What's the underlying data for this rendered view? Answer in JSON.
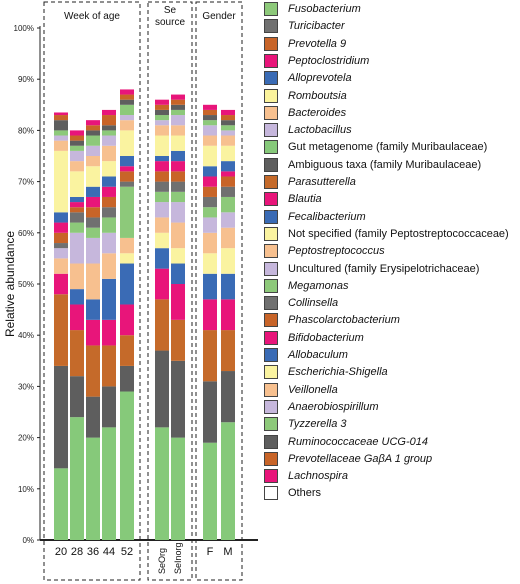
{
  "chart_data": {
    "type": "bar",
    "stacked": true,
    "ylabel": "Relative abundance",
    "ylim": [
      0,
      100
    ],
    "yticks": [
      "0%",
      "10%",
      "20%",
      "30%",
      "40%",
      "50%",
      "60%",
      "70%",
      "80%",
      "90%",
      "100%"
    ],
    "groups": [
      {
        "title": "Week of age",
        "categories": [
          "20",
          "28",
          "36",
          "44",
          "52"
        ]
      },
      {
        "title": "Se source",
        "categories": [
          "SeOrg",
          "SeInorg"
        ]
      },
      {
        "title": "Gender",
        "categories": [
          "F",
          "M"
        ]
      }
    ],
    "categories": [
      "20",
      "28",
      "36",
      "44",
      "52",
      "SeOrg",
      "SeInorg",
      "F",
      "M"
    ],
    "series": [
      {
        "name": "Fusobacterium",
        "color": "#8dc97a",
        "values": [
          0,
          0,
          0,
          0,
          0,
          0,
          0,
          0,
          0
        ]
      },
      {
        "name": "Turicibacter",
        "color": "#707070",
        "values": [
          0,
          0,
          0,
          0,
          0,
          0,
          0,
          0,
          0
        ]
      },
      {
        "name": "Prevotella 9",
        "color": "#c86428",
        "values": [
          0,
          0,
          0,
          0,
          0,
          0,
          0,
          0,
          0
        ]
      },
      {
        "name": "Peptoclostridium",
        "color": "#e8157a",
        "values": [
          0,
          0,
          0,
          0,
          0,
          0,
          0,
          0,
          0
        ]
      },
      {
        "name": "Alloprevotela",
        "color": "#3a6bb5",
        "values": [
          0,
          0,
          0,
          0,
          0,
          0,
          0,
          0,
          0
        ]
      },
      {
        "name": "Romboutsia",
        "color": "#fbf39c",
        "values": [
          0,
          0,
          0,
          0,
          0,
          0,
          0,
          0,
          0
        ]
      },
      {
        "name": "Bacteroides",
        "color": "#f7c08f",
        "values": [
          0,
          0,
          0,
          0,
          0,
          0,
          0,
          0,
          0
        ]
      },
      {
        "name": "Lactobacillus",
        "color": "#c6b7dc",
        "values": [
          0,
          0,
          0,
          0,
          0,
          0,
          0,
          0,
          0
        ]
      },
      {
        "name": "Gut metagenome (family Muribaulaceae)",
        "color": "#86c97a",
        "values": [
          14,
          24,
          20,
          22,
          29,
          22,
          20,
          19,
          23
        ]
      },
      {
        "name": "Ambiguous taxa (family Muribaulaceae)",
        "color": "#5e5e5e",
        "values": [
          20,
          8,
          8,
          8,
          5,
          15,
          15,
          12,
          10
        ]
      },
      {
        "name": "Parasutterella",
        "color": "#c56a2a",
        "values": [
          14,
          9,
          10,
          8,
          6,
          10,
          8,
          10,
          8
        ]
      },
      {
        "name": "Blautia",
        "color": "#e8157a",
        "values": [
          4,
          5,
          5,
          5,
          6,
          6,
          7,
          6,
          6
        ]
      },
      {
        "name": "Fecalibacterium",
        "color": "#3a6bb5",
        "values": [
          0,
          3,
          4,
          8,
          8,
          4,
          4,
          5,
          5
        ]
      },
      {
        "name": "Not specified (family Peptostreptococcaceae)",
        "color": "#faf3a0",
        "values": [
          0,
          0,
          0,
          0,
          2,
          3,
          3,
          4,
          5
        ]
      },
      {
        "name": "Peptostreptococcus",
        "color": "#f7c08f",
        "values": [
          3,
          5,
          7,
          5,
          3,
          3,
          5,
          4,
          4
        ]
      },
      {
        "name": "Uncultured (family Erysipelotrichaceae)",
        "color": "#c6b7dc",
        "values": [
          2,
          6,
          5,
          4,
          0,
          3,
          4,
          3,
          3
        ]
      },
      {
        "name": "Megamonas",
        "color": "#8dc97a",
        "values": [
          0,
          2,
          2,
          3,
          10,
          2,
          2,
          2,
          3
        ]
      },
      {
        "name": "Collinsella",
        "color": "#707070",
        "values": [
          1,
          2,
          2,
          2,
          1,
          2,
          2,
          2,
          2
        ]
      },
      {
        "name": "Phascolarctobacterium",
        "color": "#c86428",
        "values": [
          2,
          1,
          2,
          2,
          2,
          2,
          2,
          2,
          2
        ]
      },
      {
        "name": "Bifidobacterium",
        "color": "#e8157a",
        "values": [
          2,
          1,
          2,
          2,
          1,
          2,
          2,
          2,
          1
        ]
      },
      {
        "name": "Allobaculum",
        "color": "#3a6bb5",
        "values": [
          2,
          1,
          2,
          2,
          2,
          1,
          2,
          2,
          2
        ]
      },
      {
        "name": "Escherichia-Shigella",
        "color": "#faf3a0",
        "values": [
          12,
          5,
          4,
          3,
          5,
          4,
          3,
          4,
          3
        ]
      },
      {
        "name": "Veillonella",
        "color": "#f7c08f",
        "values": [
          2,
          2,
          2,
          3,
          2,
          2,
          2,
          2,
          2
        ]
      },
      {
        "name": "Anaerobiospirillum",
        "color": "#c6b7dc",
        "values": [
          1,
          2,
          2,
          2,
          1,
          1,
          2,
          2,
          1
        ]
      },
      {
        "name": "Tyzzerella 3",
        "color": "#8dc97a",
        "values": [
          1,
          1,
          2,
          1,
          2,
          1,
          1,
          1,
          1
        ]
      },
      {
        "name": "Ruminococcaceae UCG-014",
        "color": "#5e5e5e",
        "values": [
          2,
          1,
          1,
          1,
          1,
          1,
          1,
          1,
          1
        ]
      },
      {
        "name": "Prevotellaceae GaβA 1 group",
        "color": "#c86428",
        "values": [
          1,
          1,
          1,
          2,
          1,
          1,
          1,
          1,
          1
        ]
      },
      {
        "name": "Lachnospira",
        "color": "#e8157a",
        "values": [
          0.5,
          1,
          1,
          1,
          1,
          1,
          1,
          1,
          1
        ]
      },
      {
        "name": "Others",
        "color": "#ffffff",
        "values": [
          0,
          0,
          0,
          0,
          0,
          0,
          0,
          0,
          0
        ]
      }
    ],
    "legend_placement": "right",
    "grid": false
  }
}
